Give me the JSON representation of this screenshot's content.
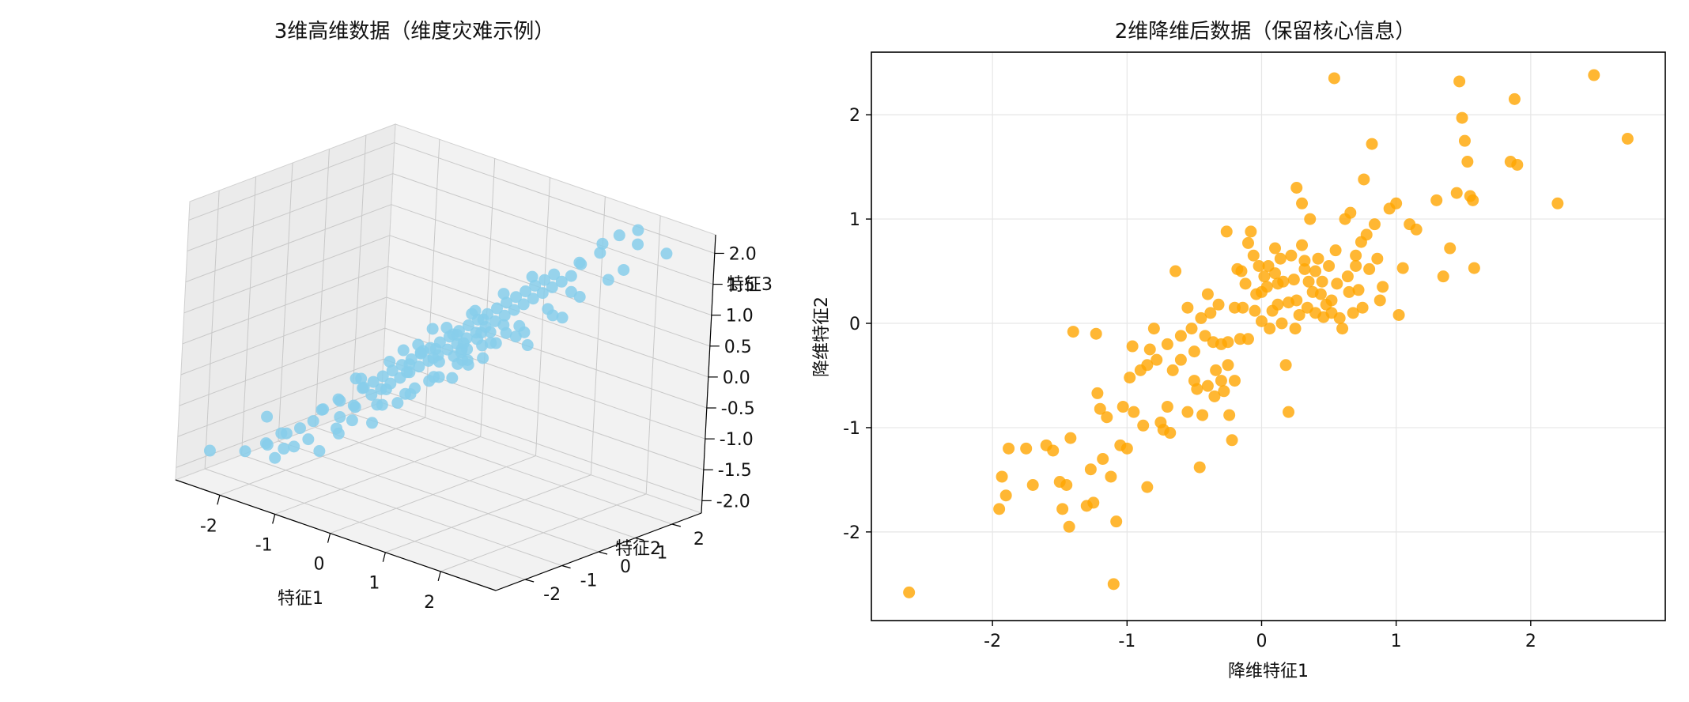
{
  "figure": {
    "left_title": "3维高维数据（维度灾难示例）",
    "right_title": "2维降维后数据（保留核心信息）"
  },
  "colors": {
    "scatter3d": "#87ceeb",
    "scatter2d": "#ffa500",
    "grid": "#e6e6e6",
    "pane": "#f2f2f2"
  },
  "chart_data": [
    {
      "type": "scatter",
      "projection": "3d",
      "title": "3维高维数据（维度灾难示例）",
      "xlabel": "特征1",
      "ylabel": "特征2",
      "zlabel": "特征3",
      "xlim": [
        -2.8,
        3.0
      ],
      "ylim": [
        -2.8,
        2.8
      ],
      "zlim": [
        -2.2,
        2.3
      ],
      "xticks": [
        "-2",
        "-1",
        "0",
        "1",
        "2"
      ],
      "yticks": [
        "-2",
        "-1",
        "0",
        "1",
        "2"
      ],
      "zticks": [
        "-2.0",
        "-1.5",
        "-1.0",
        "-0.5",
        "0.0",
        "0.5",
        "1.0",
        "1.5",
        "2.0"
      ],
      "grid": true,
      "points": [
        [
          -2.6,
          -2.2,
          -1.8
        ],
        [
          -2.1,
          -2.0,
          -1.7
        ],
        [
          -1.9,
          -1.7,
          -1.6
        ],
        [
          -1.8,
          -1.9,
          -1.5
        ],
        [
          -1.7,
          -1.5,
          -1.4
        ],
        [
          -1.6,
          -1.8,
          -1.3
        ],
        [
          -1.5,
          -1.2,
          -1.5
        ],
        [
          -1.4,
          -1.6,
          -1.2
        ],
        [
          -1.35,
          -1.1,
          -1.0
        ],
        [
          -1.3,
          -1.4,
          -1.1
        ],
        [
          -1.2,
          -1.3,
          -0.9
        ],
        [
          -1.15,
          -0.9,
          -1.1
        ],
        [
          -1.1,
          -1.0,
          -0.8
        ],
        [
          -1.0,
          -1.2,
          -0.7
        ],
        [
          -0.95,
          -0.8,
          -0.9
        ],
        [
          -0.9,
          -0.7,
          -0.6
        ],
        [
          -0.85,
          -1.0,
          -0.8
        ],
        [
          -0.8,
          -0.6,
          -0.7
        ],
        [
          -0.75,
          -0.9,
          -0.5
        ],
        [
          -0.7,
          -0.5,
          -0.6
        ],
        [
          -0.65,
          -0.8,
          -0.4
        ],
        [
          -0.6,
          -0.4,
          -0.5
        ],
        [
          -0.55,
          -0.7,
          -0.3
        ],
        [
          -0.5,
          -0.3,
          -0.4
        ],
        [
          -0.45,
          -0.6,
          -0.2
        ],
        [
          -0.4,
          -0.2,
          -0.3
        ],
        [
          -0.35,
          -0.5,
          -0.1
        ],
        [
          -0.3,
          -0.1,
          -0.2
        ],
        [
          -0.25,
          -0.4,
          0.0
        ],
        [
          -0.2,
          0.0,
          -0.1
        ],
        [
          -0.15,
          -0.3,
          0.1
        ],
        [
          -0.1,
          0.1,
          0.0
        ],
        [
          -0.05,
          -0.2,
          0.2
        ],
        [
          0.0,
          0.2,
          0.1
        ],
        [
          0.05,
          -0.1,
          0.3
        ],
        [
          0.1,
          0.3,
          0.2
        ],
        [
          0.15,
          0.0,
          0.4
        ],
        [
          0.2,
          0.4,
          0.3
        ],
        [
          0.25,
          0.1,
          0.5
        ],
        [
          0.3,
          0.5,
          0.4
        ],
        [
          0.35,
          0.2,
          0.6
        ],
        [
          0.4,
          0.6,
          0.5
        ],
        [
          0.45,
          0.3,
          0.7
        ],
        [
          0.5,
          0.7,
          0.6
        ],
        [
          0.55,
          0.4,
          0.8
        ],
        [
          0.6,
          0.8,
          0.7
        ],
        [
          0.65,
          0.5,
          0.9
        ],
        [
          0.7,
          0.9,
          0.8
        ],
        [
          0.75,
          0.6,
          1.0
        ],
        [
          0.8,
          1.0,
          0.9
        ],
        [
          0.85,
          0.7,
          1.1
        ],
        [
          0.9,
          1.1,
          1.0
        ],
        [
          0.95,
          0.8,
          1.2
        ],
        [
          1.0,
          1.2,
          1.1
        ],
        [
          1.05,
          0.9,
          1.3
        ],
        [
          1.1,
          1.3,
          1.2
        ],
        [
          1.15,
          1.0,
          1.4
        ],
        [
          1.2,
          1.4,
          1.3
        ],
        [
          1.25,
          1.1,
          1.5
        ],
        [
          1.3,
          1.5,
          1.4
        ],
        [
          1.4,
          1.6,
          1.6
        ],
        [
          1.5,
          1.4,
          1.7
        ],
        [
          1.6,
          1.8,
          1.8
        ],
        [
          1.7,
          1.7,
          2.0
        ],
        [
          1.8,
          2.0,
          2.1
        ],
        [
          2.0,
          2.2,
          2.2
        ],
        [
          2.2,
          1.9,
          2.1
        ],
        [
          2.4,
          2.4,
          1.9
        ],
        [
          -0.9,
          -0.9,
          -0.4
        ],
        [
          -0.6,
          -0.6,
          -0.8
        ],
        [
          -0.3,
          -0.3,
          -0.6
        ],
        [
          0.0,
          0.0,
          -0.3
        ],
        [
          0.3,
          0.3,
          0.0
        ],
        [
          0.6,
          0.6,
          0.3
        ],
        [
          0.9,
          0.9,
          0.5
        ],
        [
          1.2,
          1.2,
          0.8
        ],
        [
          -1.2,
          -0.9,
          -1.3
        ],
        [
          -0.8,
          -1.1,
          -1.0
        ],
        [
          -0.5,
          -0.9,
          -0.7
        ],
        [
          -0.2,
          -0.6,
          -0.5
        ],
        [
          0.1,
          -0.3,
          -0.2
        ],
        [
          0.4,
          0.0,
          0.1
        ],
        [
          0.7,
          0.3,
          0.4
        ],
        [
          1.0,
          0.6,
          0.7
        ],
        [
          1.3,
          0.9,
          1.0
        ],
        [
          -1.0,
          -0.6,
          -0.5
        ],
        [
          -0.7,
          -0.3,
          -0.2
        ],
        [
          -0.4,
          0.0,
          0.1
        ],
        [
          -0.1,
          0.3,
          0.4
        ],
        [
          0.2,
          0.6,
          0.7
        ],
        [
          0.5,
          0.9,
          1.0
        ],
        [
          0.8,
          1.2,
          1.3
        ],
        [
          -0.3,
          0.2,
          -0.5
        ],
        [
          0.1,
          -0.4,
          0.6
        ],
        [
          0.3,
          -0.1,
          -0.2
        ],
        [
          -0.6,
          0.1,
          -0.3
        ],
        [
          0.7,
          0.1,
          0.2
        ],
        [
          -0.2,
          -0.8,
          -0.6
        ],
        [
          0.5,
          -0.2,
          0.3
        ],
        [
          -0.8,
          -0.2,
          -0.7
        ],
        [
          0.9,
          0.4,
          0.6
        ],
        [
          0.2,
          0.8,
          0.3
        ],
        [
          -0.4,
          -0.4,
          0.1
        ],
        [
          0.0,
          0.5,
          -0.2
        ],
        [
          0.6,
          -0.3,
          0.5
        ],
        [
          -0.1,
          -0.5,
          -0.4
        ],
        [
          0.4,
          0.2,
          0.8
        ],
        [
          -0.5,
          0.3,
          -0.1
        ],
        [
          0.8,
          -0.1,
          0.9
        ],
        [
          1.1,
          0.7,
          0.4
        ],
        [
          -0.7,
          -0.7,
          -1.1
        ],
        [
          0.15,
          0.15,
          0.05
        ],
        [
          0.25,
          0.35,
          0.15
        ],
        [
          -0.15,
          0.05,
          -0.05
        ],
        [
          0.35,
          0.05,
          0.25
        ],
        [
          0.05,
          0.25,
          0.35
        ],
        [
          -0.25,
          -0.15,
          0.05
        ],
        [
          0.45,
          0.45,
          0.25
        ],
        [
          0.55,
          0.15,
          0.45
        ],
        [
          0.65,
          0.35,
          0.55
        ],
        [
          -0.05,
          -0.05,
          0.15
        ],
        [
          0.15,
          -0.25,
          0.05
        ],
        [
          0.35,
          0.25,
          -0.05
        ],
        [
          0.25,
          0.05,
          0.45
        ],
        [
          -0.35,
          -0.35,
          -0.25
        ],
        [
          0.75,
          0.55,
          0.65
        ],
        [
          0.85,
          0.75,
          0.45
        ],
        [
          1.5,
          1.0,
          0.9
        ],
        [
          1.6,
          1.3,
          1.2
        ],
        [
          1.7,
          0.9,
          1.4
        ],
        [
          -1.5,
          -2.1,
          -1.6
        ],
        [
          -1.8,
          -1.4,
          -1.7
        ],
        [
          -2.0,
          -1.6,
          -1.2
        ],
        [
          -1.3,
          -1.9,
          -1.4
        ],
        [
          -1.1,
          -1.5,
          -1.5
        ],
        [
          -0.9,
          -1.3,
          -1.2
        ],
        [
          1.9,
          1.6,
          1.5
        ],
        [
          2.1,
          1.7,
          1.7
        ]
      ]
    },
    {
      "type": "scatter",
      "title": "2维降维后数据（保留核心信息）",
      "xlabel": "降维特征1",
      "ylabel": "降维特征2",
      "xlim": [
        -2.9,
        3.0
      ],
      "ylim": [
        -2.85,
        2.6
      ],
      "xticks": [
        "-2",
        "-1",
        "0",
        "1",
        "2"
      ],
      "yticks": [
        "-2",
        "-1",
        "0",
        "1",
        "2"
      ],
      "grid": true,
      "points": [
        [
          -2.62,
          -2.58
        ],
        [
          -1.95,
          -1.78
        ],
        [
          -1.93,
          -1.47
        ],
        [
          -1.9,
          -1.65
        ],
        [
          -1.88,
          -1.2
        ],
        [
          -1.75,
          -1.2
        ],
        [
          -1.7,
          -1.55
        ],
        [
          -1.6,
          -1.17
        ],
        [
          -1.55,
          -1.22
        ],
        [
          -1.5,
          -1.52
        ],
        [
          -1.48,
          -1.78
        ],
        [
          -1.45,
          -1.55
        ],
        [
          -1.43,
          -1.95
        ],
        [
          -1.42,
          -1.1
        ],
        [
          -1.4,
          -0.08
        ],
        [
          -1.3,
          -1.75
        ],
        [
          -1.27,
          -1.4
        ],
        [
          -1.25,
          -1.72
        ],
        [
          -1.23,
          -0.1
        ],
        [
          -1.22,
          -0.67
        ],
        [
          -1.2,
          -0.82
        ],
        [
          -1.18,
          -1.3
        ],
        [
          -1.15,
          -0.9
        ],
        [
          -1.12,
          -1.47
        ],
        [
          -1.1,
          -2.5
        ],
        [
          -1.08,
          -1.9
        ],
        [
          -1.05,
          -1.17
        ],
        [
          -1.03,
          -0.8
        ],
        [
          -1.0,
          -1.2
        ],
        [
          -0.98,
          -0.52
        ],
        [
          -0.96,
          -0.22
        ],
        [
          -0.95,
          -0.85
        ],
        [
          -0.9,
          -0.45
        ],
        [
          -0.88,
          -0.98
        ],
        [
          -0.85,
          -1.57
        ],
        [
          -0.83,
          -0.25
        ],
        [
          -0.8,
          -0.05
        ],
        [
          -0.78,
          -0.35
        ],
        [
          -0.75,
          -0.95
        ],
        [
          -0.73,
          -1.02
        ],
        [
          -0.7,
          -0.8
        ],
        [
          -0.68,
          -1.05
        ],
        [
          -0.66,
          -0.45
        ],
        [
          -0.64,
          0.5
        ],
        [
          -0.6,
          -0.12
        ],
        [
          -0.55,
          -0.85
        ],
        [
          -0.52,
          -0.05
        ],
        [
          -0.5,
          -0.27
        ],
        [
          -0.48,
          -0.63
        ],
        [
          -0.46,
          -1.38
        ],
        [
          -0.44,
          -0.88
        ],
        [
          -0.42,
          -0.12
        ],
        [
          -0.4,
          -0.6
        ],
        [
          -0.38,
          0.1
        ],
        [
          -0.36,
          -0.18
        ],
        [
          -0.34,
          -0.45
        ],
        [
          -0.32,
          0.18
        ],
        [
          -0.3,
          -0.55
        ],
        [
          -0.28,
          -0.65
        ],
        [
          -0.26,
          0.88
        ],
        [
          -0.25,
          -0.18
        ],
        [
          -0.24,
          -0.88
        ],
        [
          -0.22,
          -1.12
        ],
        [
          -0.2,
          -0.55
        ],
        [
          -0.18,
          0.52
        ],
        [
          -0.16,
          -0.15
        ],
        [
          -0.14,
          0.15
        ],
        [
          -0.12,
          0.38
        ],
        [
          -0.1,
          0.77
        ],
        [
          -0.08,
          0.88
        ],
        [
          -0.06,
          0.65
        ],
        [
          -0.04,
          0.28
        ],
        [
          -0.02,
          0.55
        ],
        [
          0.0,
          0.02
        ],
        [
          0.02,
          0.45
        ],
        [
          0.04,
          0.35
        ],
        [
          0.06,
          -0.05
        ],
        [
          0.08,
          0.12
        ],
        [
          0.1,
          0.48
        ],
        [
          0.12,
          0.38
        ],
        [
          0.14,
          0.62
        ],
        [
          0.16,
          0.4
        ],
        [
          0.18,
          -0.4
        ],
        [
          0.2,
          -0.85
        ],
        [
          0.22,
          0.65
        ],
        [
          0.24,
          0.42
        ],
        [
          0.26,
          0.22
        ],
        [
          0.28,
          0.08
        ],
        [
          0.3,
          0.75
        ],
        [
          0.32,
          0.52
        ],
        [
          0.34,
          0.15
        ],
        [
          0.36,
          1.0
        ],
        [
          0.38,
          0.3
        ],
        [
          0.4,
          0.1
        ],
        [
          0.42,
          0.62
        ],
        [
          0.44,
          0.28
        ],
        [
          0.46,
          0.06
        ],
        [
          0.48,
          0.18
        ],
        [
          0.5,
          0.55
        ],
        [
          0.52,
          0.1
        ],
        [
          0.54,
          2.35
        ],
        [
          0.56,
          0.38
        ],
        [
          0.58,
          0.05
        ],
        [
          0.6,
          -0.05
        ],
        [
          0.62,
          1.0
        ],
        [
          0.64,
          0.45
        ],
        [
          0.66,
          1.06
        ],
        [
          0.68,
          0.1
        ],
        [
          0.7,
          0.65
        ],
        [
          0.72,
          0.32
        ],
        [
          0.74,
          0.78
        ],
        [
          0.76,
          1.38
        ],
        [
          0.78,
          0.85
        ],
        [
          0.8,
          0.52
        ],
        [
          0.82,
          1.72
        ],
        [
          0.84,
          0.95
        ],
        [
          0.86,
          0.62
        ],
        [
          0.88,
          0.22
        ],
        [
          0.9,
          0.35
        ],
        [
          0.95,
          1.1
        ],
        [
          1.0,
          1.15
        ],
        [
          1.02,
          0.08
        ],
        [
          1.05,
          0.53
        ],
        [
          1.1,
          0.95
        ],
        [
          1.15,
          0.9
        ],
        [
          1.3,
          1.18
        ],
        [
          1.35,
          0.45
        ],
        [
          1.4,
          0.72
        ],
        [
          1.45,
          1.25
        ],
        [
          1.47,
          2.32
        ],
        [
          1.49,
          1.97
        ],
        [
          1.51,
          1.75
        ],
        [
          1.53,
          1.55
        ],
        [
          1.55,
          1.22
        ],
        [
          1.57,
          1.18
        ],
        [
          1.58,
          0.53
        ],
        [
          1.85,
          1.55
        ],
        [
          1.88,
          2.15
        ],
        [
          1.9,
          1.52
        ],
        [
          2.2,
          1.15
        ],
        [
          2.47,
          2.38
        ],
        [
          2.72,
          1.77
        ],
        [
          0.26,
          1.3
        ],
        [
          0.3,
          1.15
        ],
        [
          -0.4,
          0.28
        ],
        [
          -0.15,
          0.5
        ],
        [
          0.0,
          0.3
        ],
        [
          0.1,
          0.72
        ],
        [
          0.2,
          0.2
        ],
        [
          0.35,
          0.4
        ],
        [
          -0.6,
          -0.35
        ],
        [
          -0.55,
          0.15
        ],
        [
          -0.3,
          -0.2
        ],
        [
          0.15,
          0.0
        ],
        [
          0.45,
          0.4
        ],
        [
          0.65,
          0.3
        ],
        [
          0.75,
          0.15
        ],
        [
          -0.05,
          0.12
        ],
        [
          0.05,
          0.55
        ],
        [
          -0.2,
          0.15
        ],
        [
          0.25,
          -0.05
        ],
        [
          0.4,
          0.5
        ],
        [
          -0.45,
          0.05
        ],
        [
          -0.1,
          -0.15
        ],
        [
          0.55,
          0.7
        ],
        [
          0.7,
          0.55
        ],
        [
          -0.85,
          -0.4
        ],
        [
          -0.7,
          -0.2
        ],
        [
          -0.5,
          -0.55
        ],
        [
          -0.35,
          -0.7
        ],
        [
          -0.25,
          -0.4
        ],
        [
          0.12,
          0.18
        ],
        [
          0.32,
          0.6
        ],
        [
          0.52,
          0.22
        ]
      ]
    }
  ]
}
